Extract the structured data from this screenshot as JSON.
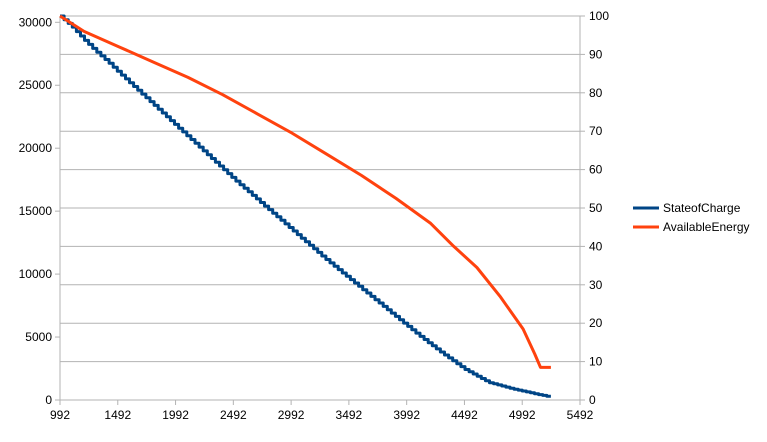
{
  "chart_data": {
    "type": "line",
    "x_ticks": [
      992,
      1492,
      1992,
      2492,
      2992,
      3492,
      3992,
      4492,
      4992,
      5492
    ],
    "xlim": [
      992,
      5492
    ],
    "y_left_ticks": [
      0,
      5000,
      10000,
      15000,
      20000,
      25000,
      30000
    ],
    "ylim_left": [
      0,
      30500
    ],
    "y_right_ticks": [
      0,
      10,
      20,
      30,
      40,
      50,
      60,
      70,
      80,
      90,
      100
    ],
    "ylim_right": [
      0,
      100
    ],
    "grid": "horizontal",
    "legend_position": "right",
    "series": [
      {
        "name": "StateofCharge",
        "axis": "left",
        "color": "#004586",
        "style": "stepped",
        "x": [
          992,
          1100,
          1200,
          1300,
          1400,
          1500,
          1700,
          1900,
          2100,
          2300,
          2500,
          2700,
          2900,
          3100,
          3300,
          3500,
          3700,
          3900,
          4100,
          4300,
          4500,
          4700,
          4900,
          5100,
          5200,
          5240
        ],
        "values": [
          30500,
          29600,
          28600,
          27700,
          26900,
          26000,
          24300,
          22600,
          20900,
          19200,
          17500,
          15900,
          14300,
          12700,
          11100,
          9600,
          8100,
          6600,
          5100,
          3700,
          2400,
          1400,
          900,
          500,
          300,
          300
        ]
      },
      {
        "name": "AvailableEnergy",
        "axis": "right",
        "color": "#ff420e",
        "style": "smooth",
        "x": [
          992,
          1200,
          1500,
          1800,
          2100,
          2400,
          2700,
          3000,
          3300,
          3600,
          3900,
          4200,
          4400,
          4600,
          4800,
          5000,
          5100,
          5150,
          5200,
          5240
        ],
        "values": [
          100,
          96,
          92,
          88,
          84,
          79.5,
          74.5,
          69.5,
          64,
          58.5,
          52.5,
          46,
          40,
          34.5,
          27,
          18.5,
          12,
          8.5,
          8.5,
          8.5
        ]
      }
    ]
  }
}
